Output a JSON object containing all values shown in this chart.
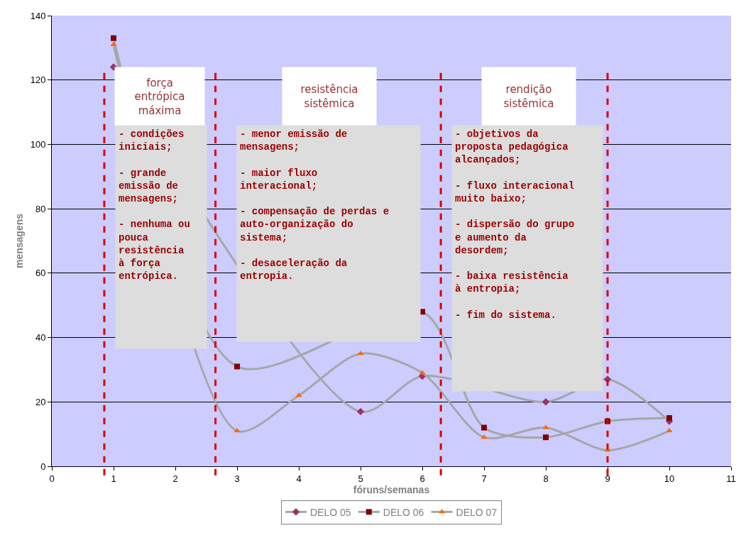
{
  "chart_data": {
    "type": "line",
    "xlabel": "fóruns/semanas",
    "ylabel": "mensagens",
    "x": [
      1,
      2,
      3,
      4,
      5,
      6,
      7,
      8,
      9,
      10
    ],
    "series": [
      {
        "name": "DELO 05",
        "color": "#993366",
        "marker": "diamond",
        "values": [
          124,
          null,
          null,
          null,
          17,
          28,
          null,
          20,
          27,
          14
        ]
      },
      {
        "name": "DELO 06",
        "color": "#800000",
        "marker": "square",
        "values": [
          133,
          null,
          31,
          null,
          null,
          48,
          12,
          9,
          14,
          15
        ]
      },
      {
        "name": "DELO 07",
        "color": "#ff6600",
        "marker": "triangle",
        "values": [
          131,
          null,
          11,
          22,
          35,
          29,
          9,
          12,
          5,
          11
        ]
      }
    ],
    "xlim": [
      0,
      11
    ],
    "xticks": [
      0,
      1,
      2,
      3,
      4,
      5,
      6,
      7,
      8,
      9,
      10,
      11
    ],
    "ylim": [
      0,
      140
    ],
    "yticks": [
      0,
      20,
      40,
      60,
      80,
      100,
      120,
      140
    ],
    "grid": "y",
    "legend": "bottom",
    "line_style": "solid",
    "ref_lines": [
      {
        "axis": "x",
        "value": 0.85,
        "color": "#dd0000",
        "line_style": "dashed"
      },
      {
        "axis": "x",
        "value": 2.65,
        "color": "#dd0000",
        "line_style": "dashed"
      },
      {
        "axis": "x",
        "value": 6.3,
        "color": "#dd0000",
        "line_style": "dashed"
      },
      {
        "axis": "x",
        "value": 9,
        "color": "#dd0000",
        "line_style": "dashed"
      }
    ],
    "annotations": [
      "força\nentrópica\nmáxima",
      "resistência\nsistêmica",
      "rendição\nsistêmica",
      "- condições\niniciais;\n\n- grande\nemissão de\nmensagens;\n\n- nenhuma ou\npouca\nresistência\nà força\nentrópica.",
      "- menor emissão de\nmensagens;\n\n- maior fluxo\ninteracional;\n\n- compensação de perdas e\nauto-organização do\nsistema;\n\n- desaceleração da\nentropia.",
      "- objetivos da\nproposta pedagógica\nalcançados;\n\n- fluxo interacional\nmuito baixo;\n\n- dispersão do grupo\ne aumento da\ndesordem;\n\n- baixa resistência\nà entropia;\n\n- fim do sistema."
    ]
  }
}
